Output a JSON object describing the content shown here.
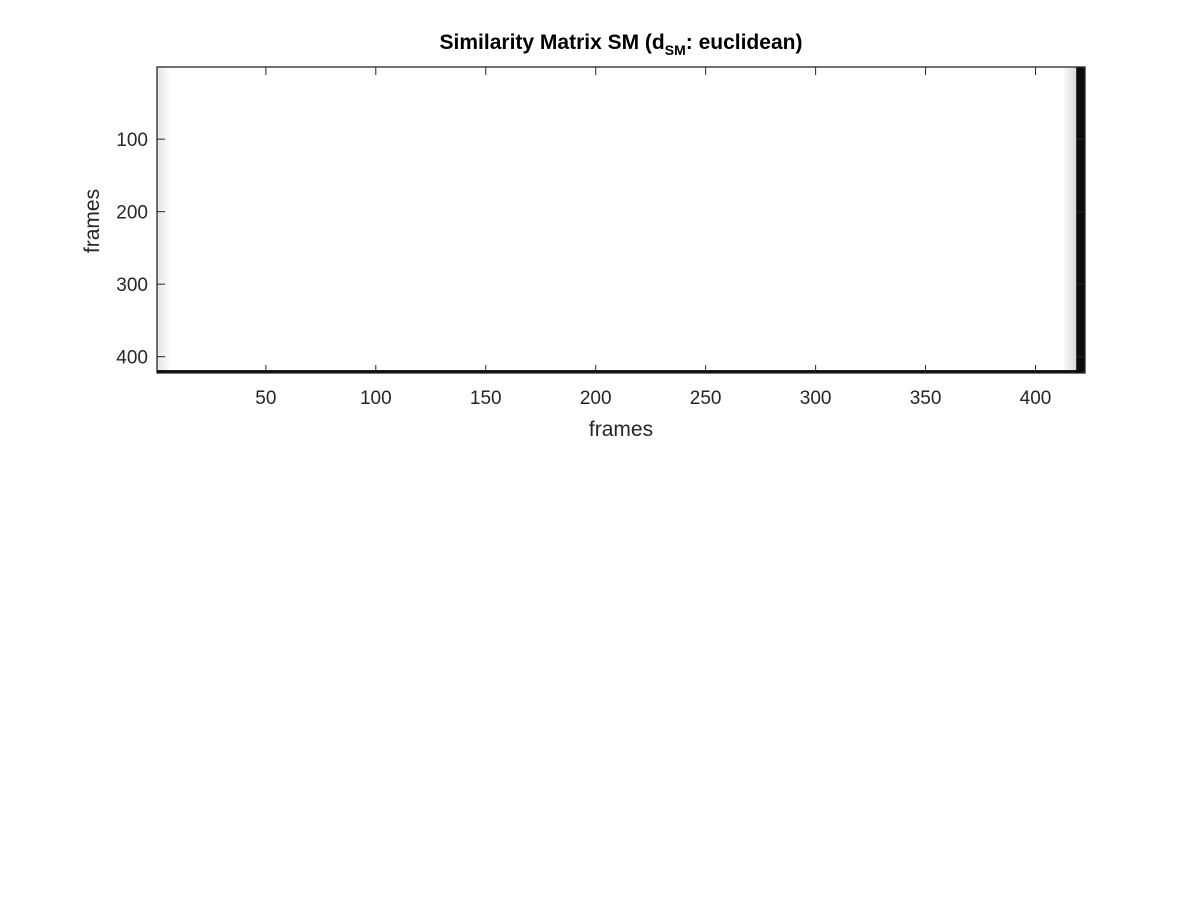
{
  "chart_data": {
    "type": "heatmap",
    "title": {
      "main": "Similarity Matrix SM   (d",
      "subscript": "SM",
      "tail": ": euclidean)"
    },
    "xlabel": "frames",
    "ylabel": "frames",
    "xlim": [
      0.5,
      422.5
    ],
    "ylim": [
      0.5,
      422.5
    ],
    "y_reversed": true,
    "x_ticks": [
      50,
      100,
      150,
      200,
      250,
      300,
      350,
      400
    ],
    "y_ticks": [
      100,
      200,
      300,
      400
    ],
    "colormap": "gray",
    "dominant_color": "#ffffff",
    "matrix_description_values": {
      "near_uniform_region_frames": [
        1,
        418
      ],
      "dark_band_frames": [
        419,
        422
      ]
    },
    "grid": false,
    "box": true
  }
}
